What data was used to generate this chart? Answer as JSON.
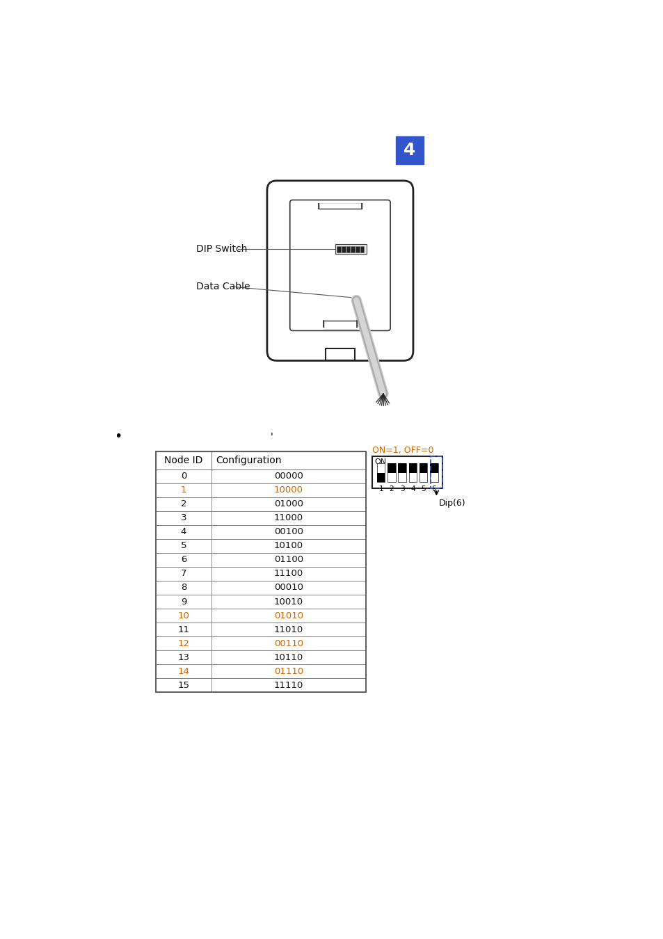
{
  "page_number": "4",
  "page_bg": "#ffffff",
  "badge_color": "#3355cc",
  "badge_text_color": "#ffffff",
  "dip_switch_label": "DIP Switch",
  "data_cable_label": "Data Cable",
  "table_header": [
    "Node ID",
    "Configuration"
  ],
  "table_rows": [
    [
      "0",
      "00000"
    ],
    [
      "1",
      "10000"
    ],
    [
      "2",
      "01000"
    ],
    [
      "3",
      "11000"
    ],
    [
      "4",
      "00100"
    ],
    [
      "5",
      "10100"
    ],
    [
      "6",
      "01100"
    ],
    [
      "7",
      "11100"
    ],
    [
      "8",
      "00010"
    ],
    [
      "9",
      "10010"
    ],
    [
      "10",
      "01010"
    ],
    [
      "11",
      "11010"
    ],
    [
      "12",
      "00110"
    ],
    [
      "13",
      "10110"
    ],
    [
      "14",
      "01110"
    ],
    [
      "15",
      "11110"
    ]
  ],
  "orange_rows": [
    1,
    10,
    12,
    14
  ],
  "orange_color": "#cc6600",
  "black_color": "#111111",
  "on_label": "ON=1, OFF=0",
  "toggle_states": [
    true,
    false,
    false,
    false,
    false,
    false
  ]
}
